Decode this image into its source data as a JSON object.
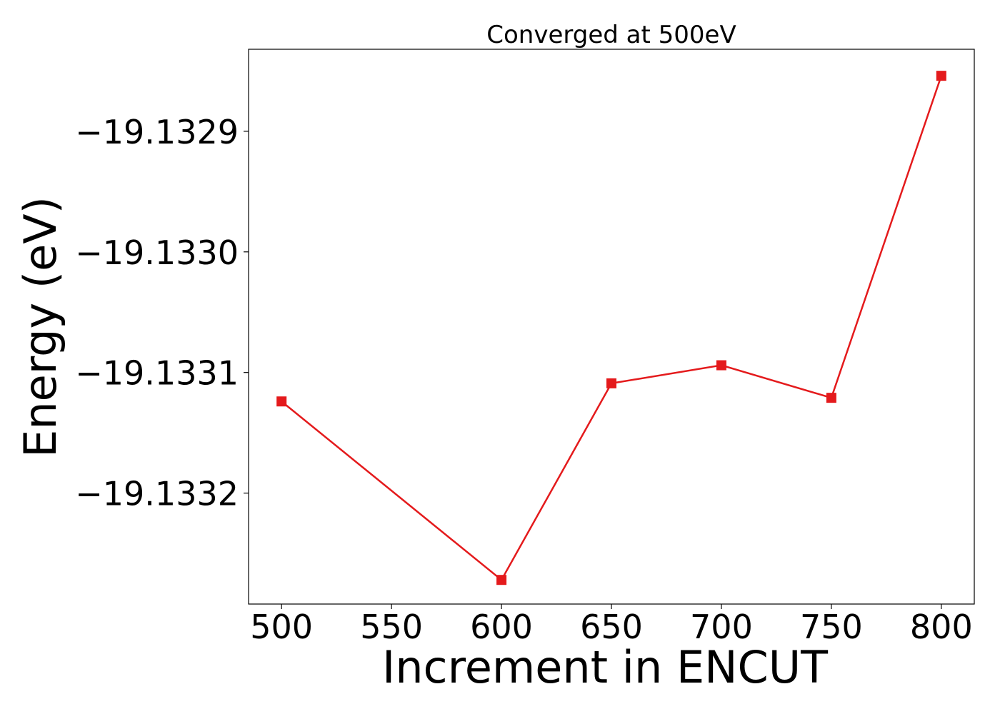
{
  "chart_data": {
    "type": "line",
    "title": "Converged at 500eV",
    "xlabel": "Increment in ENCUT",
    "ylabel": "Energy (eV)",
    "x": [
      500,
      600,
      650,
      700,
      750,
      800
    ],
    "series": [
      {
        "values": [
          -19.133124,
          -19.133272,
          -19.133109,
          -19.133094,
          -19.133121,
          -19.132854
        ],
        "color": "#e41a1c",
        "marker": "square"
      }
    ],
    "xticks": [
      500,
      550,
      600,
      650,
      700,
      750,
      800
    ],
    "xtick_labels": [
      "500",
      "550",
      "600",
      "650",
      "700",
      "750",
      "800"
    ],
    "yticks": [
      -19.1329,
      -19.133,
      -19.1331,
      -19.1332
    ],
    "ytick_labels": [
      "−19.1329",
      "−19.1330",
      "−19.1331",
      "−19.1332"
    ],
    "xlim": [
      485,
      815
    ],
    "ylim": [
      -19.133292,
      -19.132832
    ],
    "grid": false,
    "legend": false
  }
}
